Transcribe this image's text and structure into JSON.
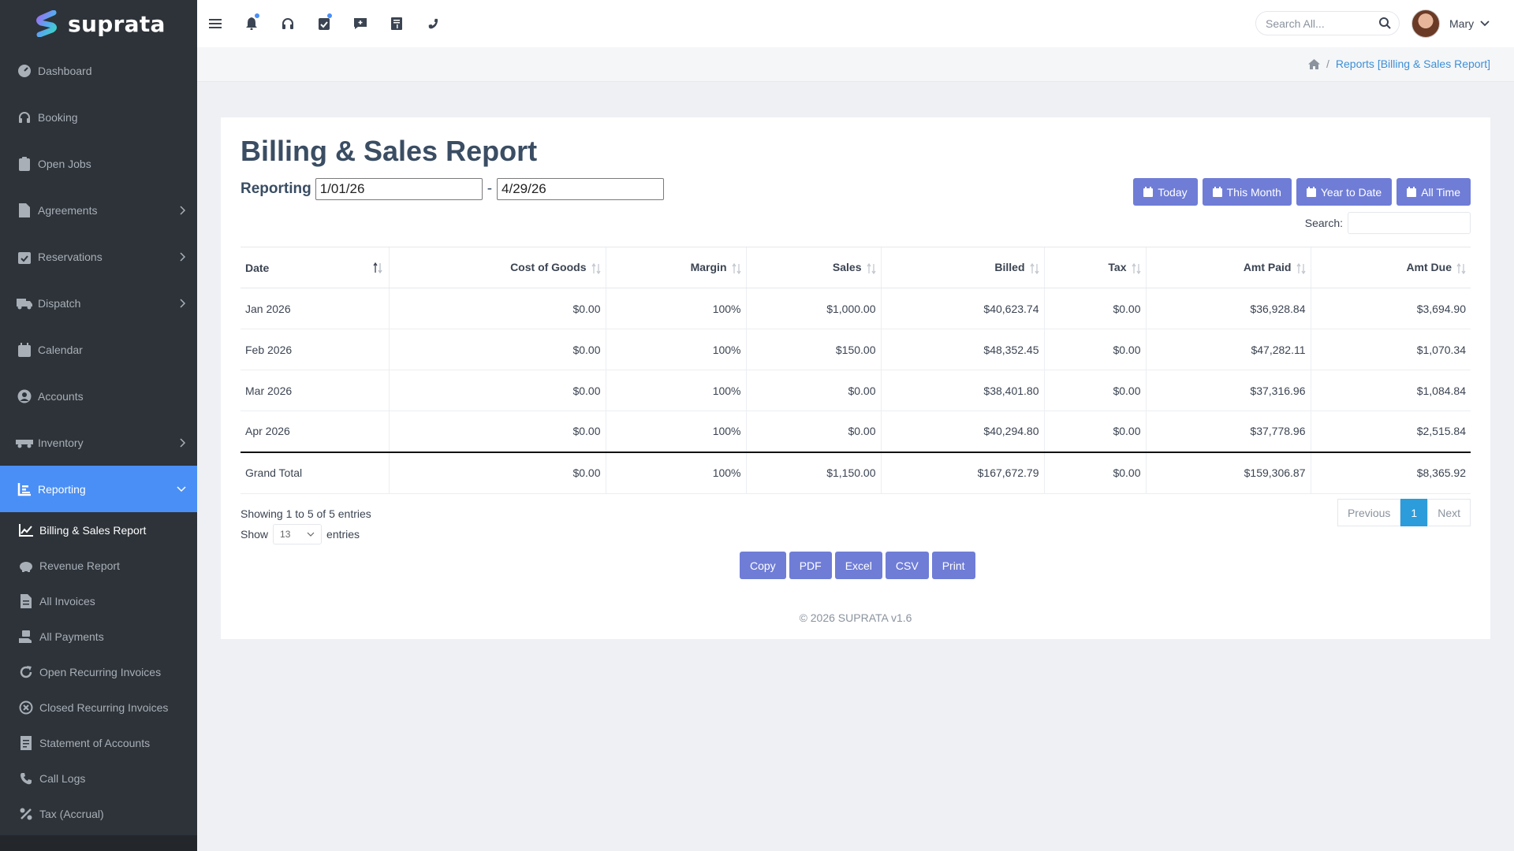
{
  "app": {
    "name": "suprata"
  },
  "sidebar": {
    "items": [
      {
        "label": "Dashboard",
        "icon": "dashboard-icon",
        "has_submenu": false
      },
      {
        "label": "Booking",
        "icon": "headset-icon",
        "has_submenu": false
      },
      {
        "label": "Open Jobs",
        "icon": "clipboard-icon",
        "has_submenu": false
      },
      {
        "label": "Agreements",
        "icon": "file-contract-icon",
        "has_submenu": true
      },
      {
        "label": "Reservations",
        "icon": "calendar-check-icon",
        "has_submenu": true
      },
      {
        "label": "Dispatch",
        "icon": "truck-icon",
        "has_submenu": true
      },
      {
        "label": "Calendar",
        "icon": "calendar-icon",
        "has_submenu": false
      },
      {
        "label": "Accounts",
        "icon": "user-circle-icon",
        "has_submenu": false
      },
      {
        "label": "Inventory",
        "icon": "trailer-icon",
        "has_submenu": true
      },
      {
        "label": "Reporting",
        "icon": "chart-bar-icon",
        "has_submenu": true,
        "active": true
      }
    ],
    "reporting_sub": [
      {
        "label": "Billing & Sales Report",
        "icon": "chart-line-icon",
        "current": true
      },
      {
        "label": "Revenue Report",
        "icon": "piggy-bank-icon"
      },
      {
        "label": "All Invoices",
        "icon": "invoice-icon"
      },
      {
        "label": "All Payments",
        "icon": "money-hand-icon"
      },
      {
        "label": "Open Recurring Invoices",
        "icon": "redo-icon"
      },
      {
        "label": "Closed Recurring Invoices",
        "icon": "times-circle-icon"
      },
      {
        "label": "Statement of Accounts",
        "icon": "receipt-icon"
      },
      {
        "label": "Call Logs",
        "icon": "phone-icon"
      },
      {
        "label": "Tax (Accrual)",
        "icon": "percent-icon"
      }
    ]
  },
  "topbar": {
    "search_placeholder": "Search All...",
    "user_name": "Mary"
  },
  "breadcrumb": {
    "current": "Reports [Billing & Sales Report]"
  },
  "report": {
    "title": "Billing & Sales Report",
    "reporting_label": "Reporting",
    "date_from": "1/01/26",
    "date_separator": "-",
    "date_to": "4/29/26",
    "range_buttons": [
      "Today",
      "This Month",
      "Year to Date",
      "All Time"
    ],
    "search_label": "Search:",
    "columns": [
      "Date",
      "Cost of Goods",
      "Margin",
      "Sales",
      "Billed",
      "Tax",
      "Amt Paid",
      "Amt Due"
    ],
    "rows": [
      [
        "Jan 2026",
        "$0.00",
        "100%",
        "$1,000.00",
        "$40,623.74",
        "$0.00",
        "$36,928.84",
        "$3,694.90"
      ],
      [
        "Feb 2026",
        "$0.00",
        "100%",
        "$150.00",
        "$48,352.45",
        "$0.00",
        "$47,282.11",
        "$1,070.34"
      ],
      [
        "Mar 2026",
        "$0.00",
        "100%",
        "$0.00",
        "$38,401.80",
        "$0.00",
        "$37,316.96",
        "$1,084.84"
      ],
      [
        "Apr 2026",
        "$0.00",
        "100%",
        "$0.00",
        "$40,294.80",
        "$0.00",
        "$37,778.96",
        "$2,515.84"
      ]
    ],
    "total": [
      "Grand Total",
      "$0.00",
      "100%",
      "$1,150.00",
      "$167,672.79",
      "$0.00",
      "$159,306.87",
      "$8,365.92"
    ],
    "showing": "Showing 1 to 5 of 5 entries",
    "show_label": "Show",
    "show_value": "13",
    "entries_label": "entries",
    "pager": {
      "previous": "Previous",
      "page": "1",
      "next": "Next"
    },
    "export_buttons": [
      "Copy",
      "PDF",
      "Excel",
      "CSV",
      "Print"
    ],
    "footer": "© 2026 SUPRATA v1.6"
  },
  "colors": {
    "accent": "#4a8ff5",
    "button": "#6f7dd6",
    "sidebar_bg": "#2d3339",
    "page_active": "#2c9cdb"
  }
}
